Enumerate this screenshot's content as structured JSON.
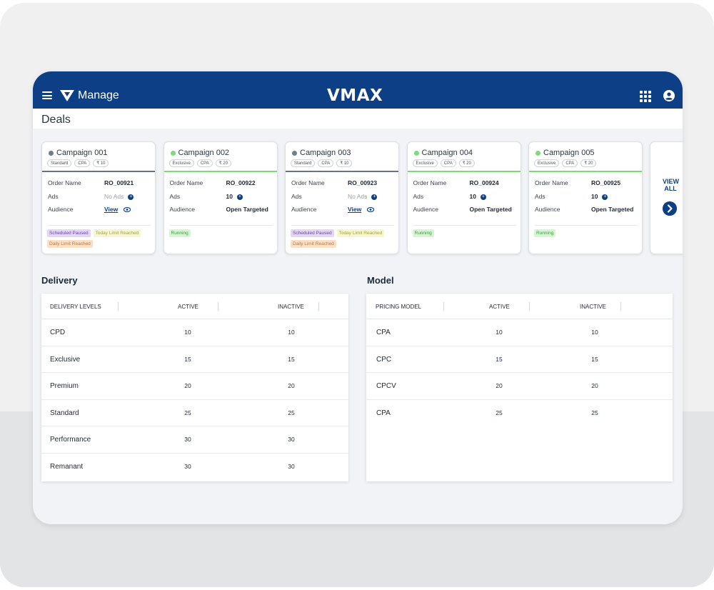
{
  "header": {
    "app_name": "Manage",
    "logo": "VMAX",
    "menu_icon": "hamburger-menu-icon",
    "apps_icon": "apps-grid-icon",
    "user_icon": "account-circle-icon",
    "bg_color": "#0d3f86"
  },
  "page": {
    "title": "Deals"
  },
  "campaigns": [
    {
      "title": "Campaign 001",
      "state": "inactive",
      "tags": [
        "Standard",
        "CPA",
        "₹ 10"
      ],
      "order_label": "Order Name",
      "order_value": "RO_00921",
      "ads_label": "Ads",
      "ads_value": "No Ads",
      "audience_label": "Audience",
      "audience_value": "View",
      "statuses": [
        {
          "type": "paused",
          "text": "Scheduled Paused"
        },
        {
          "type": "today",
          "text": "Today Limit Reached"
        },
        {
          "type": "daily",
          "text": "Daily Limit Reached"
        }
      ]
    },
    {
      "title": "Campaign 002",
      "state": "running",
      "tags": [
        "Exclusive",
        "CPA",
        "₹ 20"
      ],
      "order_label": "Order Name",
      "order_value": "RO_00922",
      "ads_label": "Ads",
      "ads_value": "10",
      "audience_label": "Audience",
      "audience_value": "Open Targeted",
      "statuses": [
        {
          "type": "running",
          "text": "Running"
        }
      ]
    },
    {
      "title": "Campaign 003",
      "state": "inactive",
      "tags": [
        "Standard",
        "CPA",
        "₹ 10"
      ],
      "order_label": "Order Name",
      "order_value": "RO_00923",
      "ads_label": "Ads",
      "ads_value": "No Ads",
      "audience_label": "Audience",
      "audience_value": "View",
      "statuses": [
        {
          "type": "paused",
          "text": "Scheduled Paused"
        },
        {
          "type": "today",
          "text": "Today Limit Reached"
        },
        {
          "type": "daily",
          "text": "Daily Limit Reached"
        }
      ]
    },
    {
      "title": "Campaign 004",
      "state": "running",
      "tags": [
        "Exclusive",
        "CPA",
        "₹ 20"
      ],
      "order_label": "Order Name",
      "order_value": "RO_00924",
      "ads_label": "Ads",
      "ads_value": "10",
      "audience_label": "Audience",
      "audience_value": "Open Targeted",
      "statuses": [
        {
          "type": "running",
          "text": "Running"
        }
      ]
    },
    {
      "title": "Campaign 005",
      "state": "running",
      "tags": [
        "Exclusive",
        "CPA",
        "₹ 20"
      ],
      "order_label": "Order Name",
      "order_value": "RO_00925",
      "ads_label": "Ads",
      "ads_value": "10",
      "audience_label": "Audience",
      "audience_value": "Open Targeted",
      "statuses": [
        {
          "type": "running",
          "text": "Running"
        }
      ]
    }
  ],
  "view_all": {
    "label": "VIEW ALL",
    "icon": "chevron-right-icon"
  },
  "delivery": {
    "title": "Delivery",
    "headers": [
      "DELIVERY LEVELS",
      "ACTIVE",
      "INACTIVE"
    ],
    "rows": [
      {
        "name": "CPD",
        "active": "10",
        "inactive": "10"
      },
      {
        "name": "Exclusive",
        "active": "15",
        "inactive": "15"
      },
      {
        "name": "Premium",
        "active": "20",
        "inactive": "20"
      },
      {
        "name": "Standard",
        "active": "25",
        "inactive": "25"
      },
      {
        "name": "Performance",
        "active": "30",
        "inactive": "30"
      },
      {
        "name": "Remanant",
        "active": "30",
        "inactive": "30"
      }
    ]
  },
  "model": {
    "title": "Model",
    "headers": [
      "PRICING MODEL",
      "ACTIVE",
      "INACTIVE"
    ],
    "rows": [
      {
        "name": "CPA",
        "active": "10",
        "inactive": "10"
      },
      {
        "name": "CPC",
        "active": "15",
        "inactive": "15"
      },
      {
        "name": "CPCV",
        "active": "20",
        "inactive": "20"
      },
      {
        "name": "CPA",
        "active": "25",
        "inactive": "25"
      }
    ]
  }
}
